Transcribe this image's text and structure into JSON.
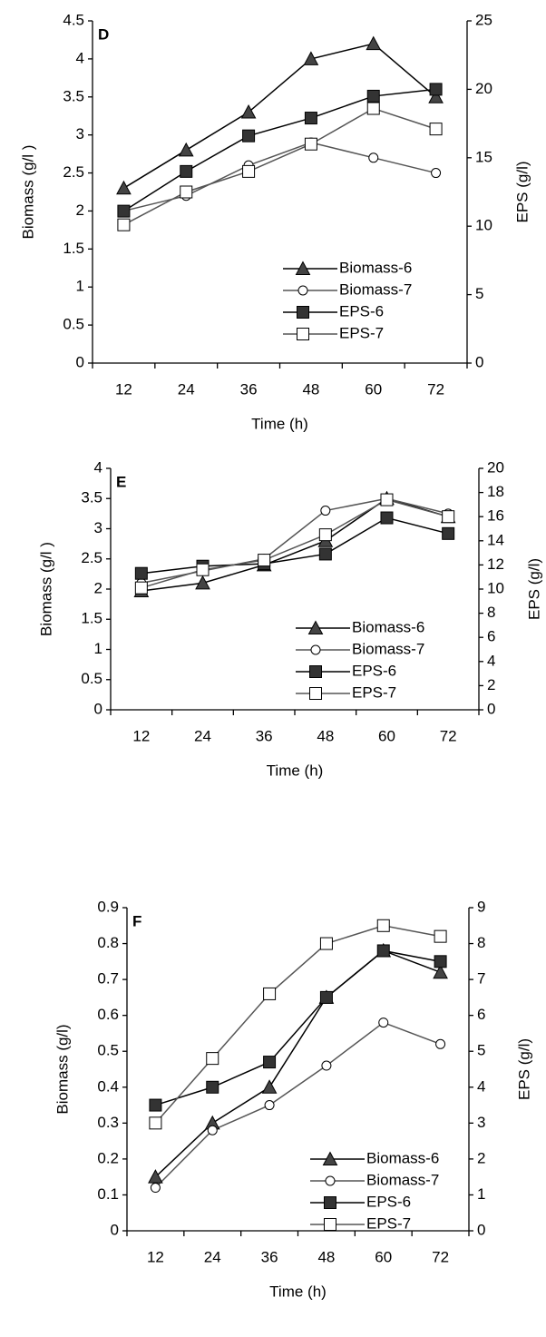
{
  "chart_data": [
    {
      "type": "line",
      "panel_label": "D",
      "x_label": "Time (h)",
      "y_label": "Biomass (g/l )",
      "y2_label": "EPS (g/l)",
      "categories": [
        "12",
        "24",
        "36",
        "48",
        "60",
        "72"
      ],
      "ylim": [
        0,
        4.5
      ],
      "yticks": [
        0,
        0.5,
        1,
        1.5,
        2,
        2.5,
        3,
        3.5,
        4,
        4.5
      ],
      "y2lim": [
        0,
        25
      ],
      "y2ticks": [
        0,
        5,
        10,
        15,
        20,
        25
      ],
      "series": [
        {
          "name": "Biomass-6",
          "color": "#000000",
          "marker": "triangle",
          "marker_fill": "#444444",
          "values": [
            2.3,
            2.8,
            3.3,
            4.0,
            4.2,
            3.5
          ]
        },
        {
          "name": "Biomass-7",
          "color": "#555555",
          "marker": "circle",
          "marker_fill": "#ffffff",
          "values": [
            2.0,
            2.2,
            2.6,
            2.9,
            2.7,
            2.5
          ]
        },
        {
          "name": "EPS-6",
          "color": "#000000",
          "marker": "square",
          "marker_fill": "#333333",
          "axis": "y2",
          "values": [
            11.1,
            14.0,
            16.6,
            17.9,
            19.5,
            20.0
          ]
        },
        {
          "name": "EPS-7",
          "color": "#555555",
          "marker": "square",
          "marker_fill": "#ffffff",
          "axis": "y2",
          "values": [
            10.1,
            12.5,
            14.0,
            16.0,
            18.6,
            17.1
          ]
        }
      ]
    },
    {
      "type": "line",
      "panel_label": "E",
      "x_label": "Time (h)",
      "y_label": "Biomass (g/l )",
      "y2_label": "EPS (g/l)",
      "categories": [
        "12",
        "24",
        "36",
        "48",
        "60",
        "72"
      ],
      "ylim": [
        0,
        4
      ],
      "yticks": [
        0,
        0.5,
        1,
        1.5,
        2,
        2.5,
        3,
        3.5,
        4
      ],
      "y2lim": [
        0,
        20
      ],
      "y2ticks": [
        0,
        2,
        4,
        6,
        8,
        10,
        12,
        14,
        16,
        18,
        20
      ],
      "series": [
        {
          "name": "Biomass-6",
          "color": "#000000",
          "marker": "triangle",
          "marker_fill": "#444444",
          "values": [
            1.97,
            2.1,
            2.4,
            2.8,
            3.5,
            3.2
          ]
        },
        {
          "name": "Biomass-7",
          "color": "#555555",
          "marker": "circle",
          "marker_fill": "#ffffff",
          "values": [
            2.1,
            2.3,
            2.5,
            3.3,
            3.5,
            3.25
          ]
        },
        {
          "name": "EPS-6",
          "color": "#000000",
          "marker": "square",
          "marker_fill": "#333333",
          "axis": "y2",
          "values": [
            11.3,
            11.9,
            12.1,
            12.9,
            15.9,
            14.6
          ]
        },
        {
          "name": "EPS-7",
          "color": "#555555",
          "marker": "square",
          "marker_fill": "#ffffff",
          "axis": "y2",
          "values": [
            10.1,
            11.6,
            12.4,
            14.5,
            17.4,
            16.0
          ]
        }
      ]
    },
    {
      "type": "line",
      "panel_label": "F",
      "x_label": "Time (h)",
      "y_label": "Biomass (g/l)",
      "y2_label": "EPS (g/l)",
      "categories": [
        "12",
        "24",
        "36",
        "48",
        "60",
        "72"
      ],
      "ylim": [
        0,
        0.9
      ],
      "yticks": [
        0,
        0.1,
        0.2,
        0.3,
        0.4,
        0.5,
        0.6,
        0.7,
        0.8,
        0.9
      ],
      "y2lim": [
        0,
        9
      ],
      "y2ticks": [
        0,
        1,
        2,
        3,
        4,
        5,
        6,
        7,
        8,
        9
      ],
      "series": [
        {
          "name": "Biomass-6",
          "color": "#000000",
          "marker": "triangle",
          "marker_fill": "#444444",
          "values": [
            0.15,
            0.3,
            0.4,
            0.65,
            0.78,
            0.72
          ]
        },
        {
          "name": "Biomass-7",
          "color": "#555555",
          "marker": "circle",
          "marker_fill": "#ffffff",
          "values": [
            0.12,
            0.28,
            0.35,
            0.46,
            0.58,
            0.52
          ]
        },
        {
          "name": "EPS-6",
          "color": "#000000",
          "marker": "square",
          "marker_fill": "#333333",
          "axis": "y2",
          "values": [
            3.5,
            4.0,
            4.7,
            6.5,
            7.8,
            7.5
          ]
        },
        {
          "name": "EPS-7",
          "color": "#555555",
          "marker": "square",
          "marker_fill": "#ffffff",
          "axis": "y2",
          "values": [
            3.0,
            4.8,
            6.6,
            8.0,
            8.5,
            8.2
          ]
        }
      ]
    }
  ]
}
